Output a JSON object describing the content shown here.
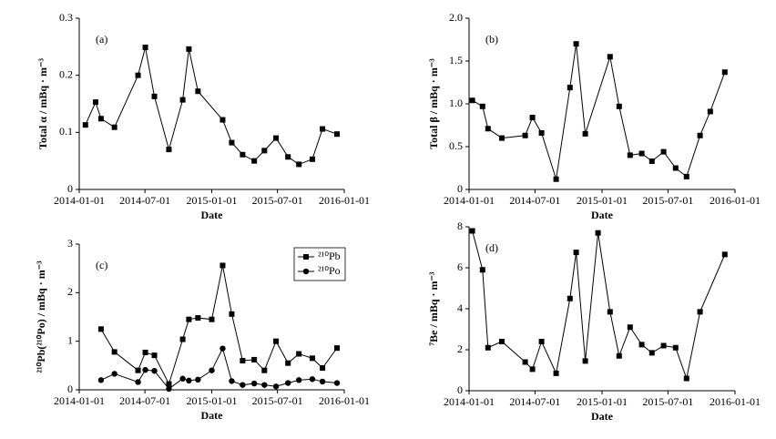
{
  "chart_data": [
    {
      "type": "line",
      "annotation": "(a)",
      "xlabel": "Date",
      "ylabel": "Total α / mBq · m⁻³",
      "x": [
        "2014-01-18",
        "2014-02-15",
        "2014-03-02",
        "2014-04-08",
        "2014-06-12",
        "2014-07-02",
        "2014-07-27",
        "2014-09-05",
        "2014-10-13",
        "2014-10-30",
        "2014-11-24",
        "2015-01-31",
        "2015-02-25",
        "2015-03-27",
        "2015-04-28",
        "2015-05-26",
        "2015-06-27",
        "2015-07-30",
        "2015-08-29",
        "2015-10-05",
        "2015-11-02",
        "2015-12-12"
      ],
      "series": [
        {
          "color": "#000000",
          "marker": "square",
          "values": [
            0.113,
            0.153,
            0.124,
            0.109,
            0.2,
            0.249,
            0.163,
            0.07,
            0.157,
            0.246,
            0.172,
            0.122,
            0.082,
            0.061,
            0.05,
            0.068,
            0.09,
            0.057,
            0.044,
            0.053,
            0.106,
            0.097
          ]
        }
      ],
      "xlim": [
        "2014-01-01",
        "2016-01-01"
      ],
      "xticks": [
        "2014-01-01",
        "2014-07-01",
        "2015-01-01",
        "2015-07-01",
        "2016-01-01"
      ],
      "ylim": [
        0,
        0.3
      ],
      "yticks": [
        0,
        0.1,
        0.2,
        0.3
      ]
    },
    {
      "type": "line",
      "annotation": "(b)",
      "xlabel": "Date",
      "ylabel": "Total β / mBq · m⁻³",
      "x": [
        "2014-01-10",
        "2014-02-07",
        "2014-02-22",
        "2014-04-01",
        "2014-06-04",
        "2014-06-24",
        "2014-07-19",
        "2014-08-28",
        "2014-10-05",
        "2014-10-22",
        "2014-11-16",
        "2015-01-23",
        "2015-02-17",
        "2015-03-19",
        "2015-04-20",
        "2015-05-18",
        "2015-06-19",
        "2015-07-22",
        "2015-08-21",
        "2015-09-27",
        "2015-10-25",
        "2015-12-04"
      ],
      "series": [
        {
          "color": "#000000",
          "marker": "square",
          "values": [
            1.04,
            0.97,
            0.71,
            0.6,
            0.63,
            0.84,
            0.66,
            0.12,
            1.19,
            1.7,
            0.65,
            1.55,
            0.97,
            0.4,
            0.42,
            0.33,
            0.44,
            0.25,
            0.15,
            0.63,
            0.91,
            1.37
          ]
        }
      ],
      "xlim": [
        "2014-01-01",
        "2016-01-01"
      ],
      "xticks": [
        "2014-01-01",
        "2014-07-01",
        "2015-01-01",
        "2015-07-01",
        "2016-01-01"
      ],
      "ylim": [
        0,
        2.0
      ],
      "yticks": [
        0,
        0.5,
        {
          "value": 1,
          "label": "1.0"
        },
        1.5,
        {
          "value": 2,
          "label": "2.0"
        }
      ]
    },
    {
      "type": "line",
      "annotation": "(c)",
      "xlabel": "Date",
      "ylabel": "²¹⁰Pb(²¹⁰Po) / mBq · m⁻³",
      "legend": "upper right",
      "x": [
        "2014-03-02",
        "2014-04-08",
        "2014-06-12",
        "2014-07-02",
        "2014-07-27",
        "2014-09-05",
        "2014-10-13",
        "2014-10-30",
        "2014-11-24",
        "2015-01-01",
        "2015-01-31",
        "2015-02-25",
        "2015-03-27",
        "2015-04-28",
        "2015-05-26",
        "2015-06-27",
        "2015-07-30",
        "2015-08-29",
        "2015-10-05",
        "2015-11-02",
        "2015-12-12"
      ],
      "series": [
        {
          "name": "²¹⁰Pb",
          "color": "#000000",
          "marker": "square",
          "values": [
            1.25,
            0.78,
            0.4,
            0.77,
            0.71,
            0.12,
            1.04,
            1.45,
            1.48,
            1.45,
            2.56,
            1.56,
            0.6,
            0.62,
            0.4,
            1.0,
            0.55,
            0.74,
            0.65,
            0.45,
            0.86
          ]
        },
        {
          "name": "²¹⁰Po",
          "color": "#000000",
          "marker": "circle",
          "values": [
            0.2,
            0.33,
            0.16,
            0.41,
            0.39,
            0.02,
            0.23,
            0.19,
            0.21,
            0.4,
            0.85,
            0.18,
            0.1,
            0.13,
            0.1,
            0.07,
            0.14,
            0.2,
            0.22,
            0.17,
            0.14
          ]
        }
      ],
      "xlim": [
        "2014-01-01",
        "2016-01-01"
      ],
      "xticks": [
        "2014-01-01",
        "2014-07-01",
        "2015-01-01",
        "2015-07-01",
        "2016-01-01"
      ],
      "ylim": [
        0,
        3
      ],
      "yticks": [
        0,
        1,
        2,
        3
      ]
    },
    {
      "type": "line",
      "annotation": "(d)",
      "xlabel": "Date",
      "ylabel": "⁷Be / mBq · m⁻³",
      "x": [
        "2014-01-10",
        "2014-02-07",
        "2014-02-22",
        "2014-04-01",
        "2014-06-04",
        "2014-06-24",
        "2014-07-19",
        "2014-08-28",
        "2014-10-05",
        "2014-10-22",
        "2014-11-16",
        "2014-12-21",
        "2015-01-23",
        "2015-02-17",
        "2015-03-19",
        "2015-04-20",
        "2015-05-18",
        "2015-06-19",
        "2015-07-22",
        "2015-08-21",
        "2015-09-27",
        "2015-12-04"
      ],
      "series": [
        {
          "color": "#000000",
          "marker": "square",
          "values": [
            7.8,
            5.9,
            2.1,
            2.4,
            1.4,
            1.05,
            2.4,
            0.85,
            4.5,
            6.75,
            1.45,
            7.7,
            3.85,
            1.7,
            3.1,
            2.25,
            1.85,
            2.2,
            2.1,
            0.6,
            3.85,
            6.65
          ]
        }
      ],
      "xlim": [
        "2014-01-01",
        "2016-01-01"
      ],
      "xticks": [
        "2014-01-01",
        "2014-07-01",
        "2015-01-01",
        "2015-07-01",
        "2016-01-01"
      ],
      "ylim": [
        0,
        8
      ],
      "yticks": [
        0,
        2,
        4,
        6,
        8
      ]
    }
  ]
}
